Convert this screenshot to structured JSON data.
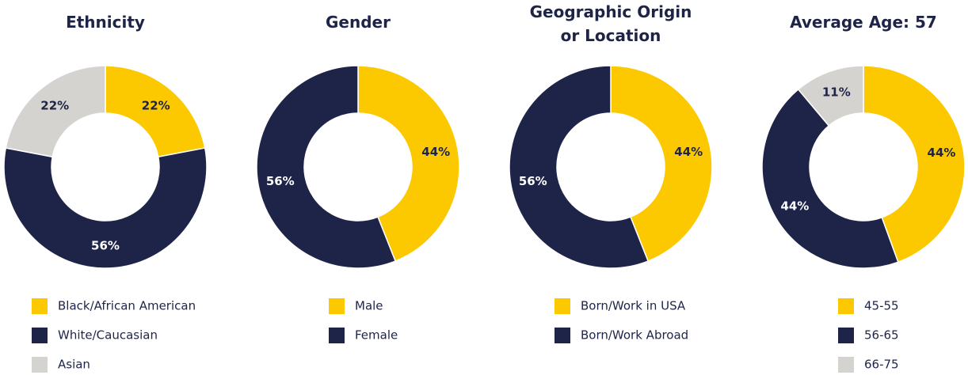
{
  "chart_data": [
    {
      "type": "pie",
      "title": "Ethnicity",
      "categories": [
        "Black/African American",
        "White/Caucasian",
        "Asian"
      ],
      "values": [
        22,
        56,
        22
      ],
      "value_labels": [
        "22%",
        "56%",
        "22%"
      ],
      "colors": [
        "#fcc800",
        "#1e2448",
        "#d5d3cf"
      ]
    },
    {
      "type": "pie",
      "title": "Gender",
      "categories": [
        "Male",
        "Female"
      ],
      "values": [
        44,
        56
      ],
      "value_labels": [
        "44%",
        "56%"
      ],
      "colors": [
        "#fcc800",
        "#1e2448"
      ]
    },
    {
      "type": "pie",
      "title": "Geographic Origin or Location",
      "categories": [
        "Born/Work in USA",
        "Born/Work Abroad"
      ],
      "values": [
        44,
        56
      ],
      "value_labels": [
        "44%",
        "56%"
      ],
      "colors": [
        "#fcc800",
        "#1e2448"
      ]
    },
    {
      "type": "pie",
      "title": "Average Age: 57",
      "categories": [
        "45-55",
        "56-65",
        "66-75"
      ],
      "values": [
        44,
        44,
        11
      ],
      "value_labels": [
        "44%",
        "44%",
        "11%"
      ],
      "colors": [
        "#fcc800",
        "#1e2448",
        "#d5d3cf"
      ]
    }
  ]
}
